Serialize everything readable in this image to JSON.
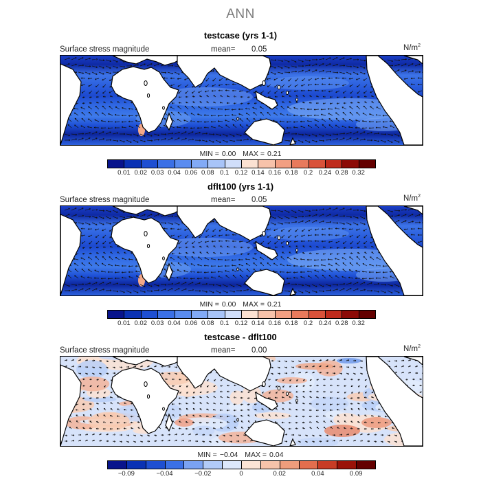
{
  "main_title": "ANN",
  "panels": [
    {
      "title": "testcase (yrs 1-1)",
      "field_label": "Surface stress magnitude",
      "mean_label": "mean=",
      "mean_value": "0.05",
      "units_base": "N/m",
      "units_exp": "2",
      "min_label": "MIN =",
      "min_value": "0.00",
      "max_label": "MAX =",
      "max_value": "0.21",
      "tick_labels": [
        "0.01",
        "0.02",
        "0.03",
        "0.04",
        "0.06",
        "0.08",
        "0.1",
        "0.12",
        "0.14",
        "0.16",
        "0.18",
        "0.2",
        "0.24",
        "0.28",
        "0.32"
      ],
      "colors": [
        "#08148c",
        "#0a32b4",
        "#1e4fd2",
        "#3b70e6",
        "#5a8cf0",
        "#82aaf6",
        "#a8c4f8",
        "#d0defa",
        "#fbe1d2",
        "#f7c2aa",
        "#f29f82",
        "#e87a5c",
        "#d9523a",
        "#bf2b1c",
        "#8c0a06",
        "#640000"
      ]
    },
    {
      "title": "dflt100 (yrs 1-1)",
      "field_label": "Surface stress magnitude",
      "mean_label": "mean=",
      "mean_value": "0.05",
      "units_base": "N/m",
      "units_exp": "2",
      "min_label": "MIN =",
      "min_value": "0.00",
      "max_label": "MAX =",
      "max_value": "0.21",
      "tick_labels": [
        "0.01",
        "0.02",
        "0.03",
        "0.04",
        "0.06",
        "0.08",
        "0.1",
        "0.12",
        "0.14",
        "0.16",
        "0.18",
        "0.2",
        "0.24",
        "0.28",
        "0.32"
      ],
      "colors": [
        "#08148c",
        "#0a32b4",
        "#1e4fd2",
        "#3b70e6",
        "#5a8cf0",
        "#82aaf6",
        "#a8c4f8",
        "#d0defa",
        "#fbe1d2",
        "#f7c2aa",
        "#f29f82",
        "#e87a5c",
        "#d9523a",
        "#bf2b1c",
        "#8c0a06",
        "#640000"
      ]
    },
    {
      "title": "testcase - dflt100",
      "field_label": "Surface stress magnitude",
      "mean_label": "mean=",
      "mean_value": "0.00",
      "units_base": "N/m",
      "units_exp": "2",
      "min_label": "MIN =",
      "min_value": "−0.04",
      "max_label": "MAX =",
      "max_value": "0.04",
      "tick_labels": [
        "−0.09",
        "",
        "−0.04",
        "",
        "−0.02",
        "",
        "0",
        "",
        "0.02",
        "",
        "0.04",
        "",
        "0.09"
      ],
      "colors": [
        "#08148c",
        "#0a32b4",
        "#1e4fd2",
        "#3b70e6",
        "#7aa2f2",
        "#b2cbf8",
        "#dde8fb",
        "#fbe4d6",
        "#f6c3aa",
        "#ef9d7c",
        "#e36e4e",
        "#c83c25",
        "#9a1208",
        "#640000"
      ]
    }
  ]
}
